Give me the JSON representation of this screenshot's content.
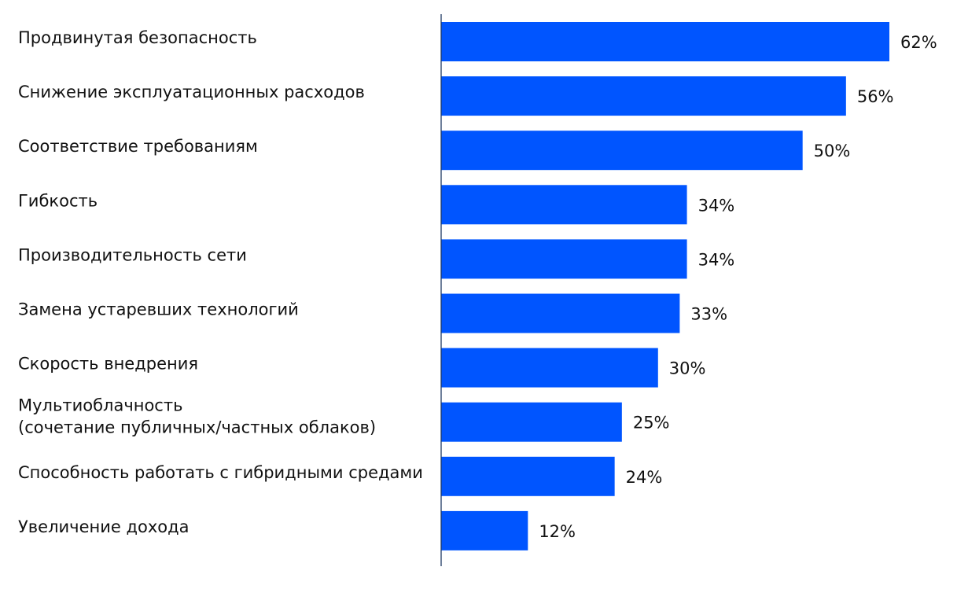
{
  "chart_data": {
    "type": "bar",
    "orientation": "horizontal",
    "title": "",
    "xlabel": "",
    "ylabel": "",
    "categories": [
      [
        "Продвинутая безопасность"
      ],
      [
        "Снижение эксплуатационных расходов"
      ],
      [
        "Соответствие требованиям"
      ],
      [
        "Гибкость"
      ],
      [
        "Производительность сети"
      ],
      [
        "Замена устаревших технологий"
      ],
      [
        "Скорость внедрения"
      ],
      [
        "Мультиоблачность",
        "(сочетание публичных/частных облаков)"
      ],
      [
        "Способность работать с гибридными средами"
      ],
      [
        "Увеличение дохода"
      ]
    ],
    "values": [
      62,
      56,
      50,
      34,
      34,
      33,
      30,
      25,
      24,
      12
    ],
    "value_labels": [
      "62%",
      "56%",
      "50%",
      "34%",
      "34%",
      "33%",
      "30%",
      "25%",
      "24%",
      "12%"
    ],
    "xlim": [
      0,
      62
    ],
    "unit": "%",
    "bar_color": "#0055FF",
    "axis_color": "#1F3A63",
    "grid": false,
    "legend": "none"
  }
}
